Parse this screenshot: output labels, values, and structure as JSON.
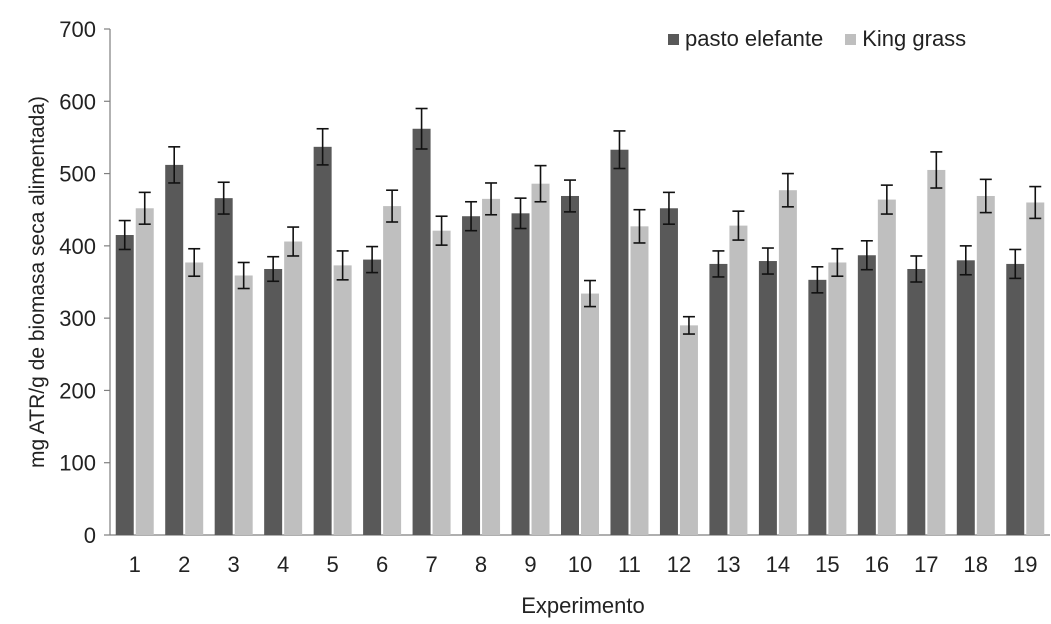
{
  "chart_data": {
    "type": "bar",
    "categories": [
      "1",
      "2",
      "3",
      "4",
      "5",
      "6",
      "7",
      "8",
      "9",
      "10",
      "11",
      "12",
      "13",
      "14",
      "15",
      "16",
      "17",
      "18",
      "19"
    ],
    "series": [
      {
        "name": "pasto elefante",
        "color": "#595959",
        "values": [
          415,
          512,
          466,
          368,
          537,
          381,
          562,
          441,
          445,
          469,
          533,
          452,
          375,
          379,
          353,
          387,
          368,
          380,
          375
        ],
        "errors": [
          20,
          25,
          22,
          17,
          25,
          18,
          28,
          20,
          21,
          22,
          26,
          22,
          18,
          18,
          18,
          20,
          18,
          20,
          20
        ]
      },
      {
        "name": "King grass",
        "color": "#bfbfbf",
        "values": [
          452,
          377,
          359,
          406,
          373,
          455,
          421,
          465,
          486,
          334,
          427,
          290,
          428,
          477,
          377,
          464,
          505,
          469,
          460
        ],
        "errors": [
          22,
          19,
          18,
          20,
          20,
          22,
          20,
          22,
          25,
          18,
          23,
          12,
          20,
          23,
          19,
          20,
          25,
          23,
          22
        ]
      }
    ],
    "xlabel": "Experimento",
    "ylabel": "mg ATR/g de biomasa seca alimentada)",
    "ylim": [
      0,
      700
    ],
    "yticks": [
      0,
      100,
      200,
      300,
      400,
      500,
      600,
      700
    ],
    "grid": false,
    "legend_position": "top-right"
  }
}
